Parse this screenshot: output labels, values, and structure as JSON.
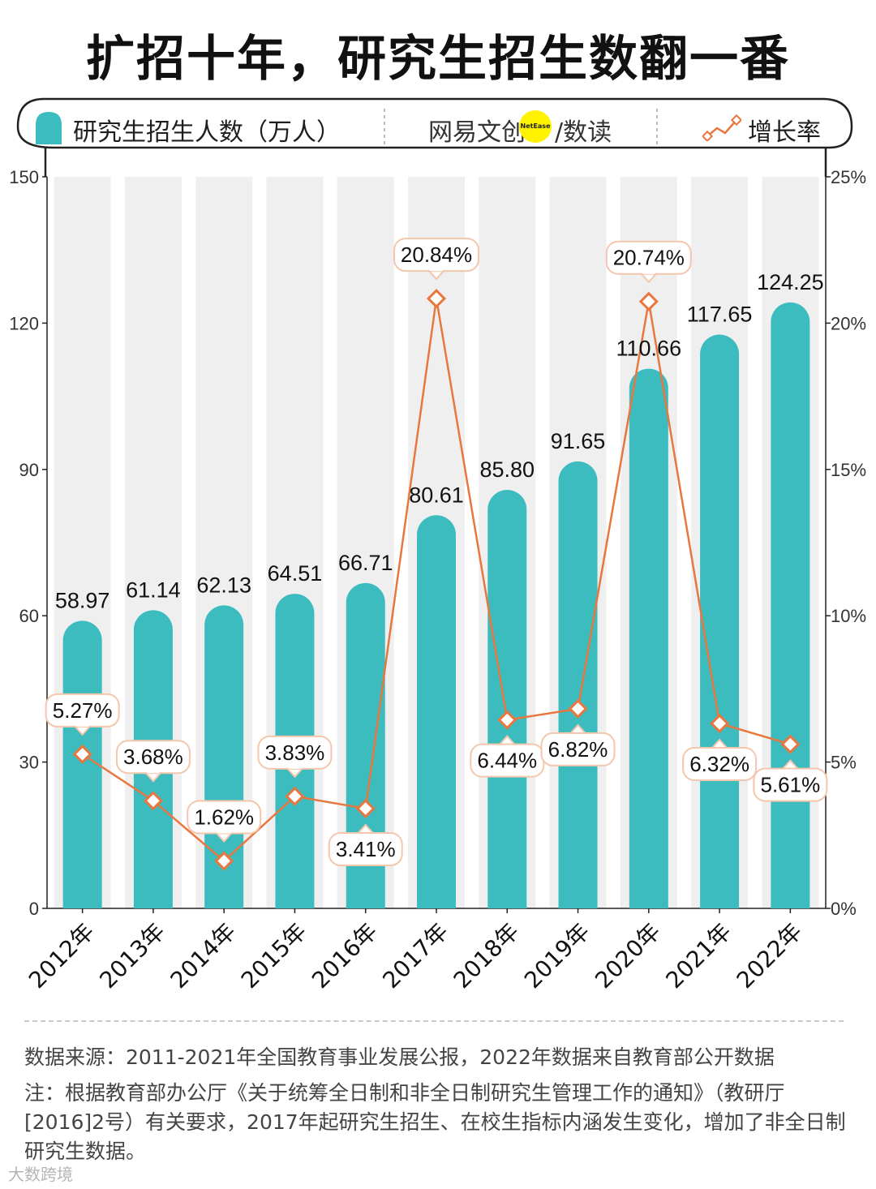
{
  "title": "扩招十年，研究生招生数翻一番",
  "legend": {
    "bar_label": "研究生招生人数（万人）",
    "brand_left": "网易文创",
    "brand_dot": "NetEase",
    "brand_right": "/数读",
    "line_label": "增长率"
  },
  "colors": {
    "bar": "#3dbcbf",
    "column_bg": "#efefef",
    "line": "#e8773f",
    "marker_fill": "#ffffff",
    "label_border": "#f4c7ad"
  },
  "chart_data": {
    "type": "bar",
    "categories": [
      "2012年",
      "2013年",
      "2014年",
      "2015年",
      "2016年",
      "2017年",
      "2018年",
      "2019年",
      "2020年",
      "2021年",
      "2022年"
    ],
    "series": [
      {
        "name": "研究生招生人数（万人）",
        "type": "bar",
        "axis": "left",
        "values": [
          58.97,
          61.14,
          62.13,
          64.51,
          66.71,
          80.61,
          85.8,
          91.65,
          110.66,
          117.65,
          124.25
        ],
        "labels": [
          "58.97",
          "61.14",
          "62.13",
          "64.51",
          "66.71",
          "80.61",
          "85.80",
          "91.65",
          "110.66",
          "117.65",
          "124.25"
        ]
      },
      {
        "name": "增长率",
        "type": "line",
        "axis": "right",
        "values": [
          5.27,
          3.68,
          1.62,
          3.83,
          3.41,
          20.84,
          6.44,
          6.82,
          20.74,
          6.32,
          5.61
        ],
        "labels": [
          "5.27%",
          "3.68%",
          "1.62%",
          "3.83%",
          "3.41%",
          "20.84%",
          "6.44%",
          "6.82%",
          "20.74%",
          "6.32%",
          "5.61%"
        ],
        "label_position": [
          "above",
          "above",
          "above",
          "above",
          "below",
          "above",
          "below",
          "below",
          "above",
          "below",
          "below"
        ]
      }
    ],
    "left_axis": {
      "min": 0,
      "max": 150,
      "ticks": [
        "0",
        "30",
        "60",
        "90",
        "120",
        "150"
      ]
    },
    "right_axis": {
      "min": 0,
      "max": 25,
      "ticks": [
        "0%",
        "5%",
        "10%",
        "15%",
        "20%",
        "25%"
      ]
    }
  },
  "footer": {
    "source": "数据来源：2011-2021年全国教育事业发展公报，2022年数据来自教育部公开数据",
    "note": "注：根据教育部办公厅《关于统筹全日制和非全日制研究生管理工作的通知》（教研厅[2016]2号）有关要求，2017年起研究生招生、在校生指标内涵发生变化，增加了非全日制研究生数据。",
    "watermark": "大数跨境"
  }
}
